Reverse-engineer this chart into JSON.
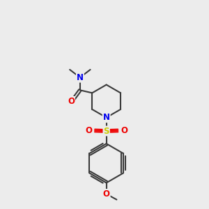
{
  "background_color": "#ececec",
  "atom_colors": {
    "C": "#000000",
    "N": "#0000ee",
    "O": "#ee0000",
    "S": "#cccc00"
  },
  "bond_color": "#3a3a3a",
  "bond_width": 1.5,
  "figsize": [
    3.0,
    3.0
  ],
  "dpi": 100,
  "xlim": [
    0,
    10
  ],
  "ylim": [
    0,
    11
  ]
}
